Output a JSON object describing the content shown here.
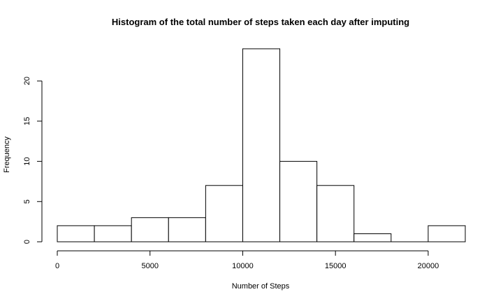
{
  "chart_data": {
    "type": "bar",
    "title": "Histogram of the total number of steps taken each day after imputing",
    "xlabel": "Number of Steps",
    "ylabel": "Frequency",
    "bins": [
      {
        "from": 0,
        "to": 2000,
        "count": 2
      },
      {
        "from": 2000,
        "to": 4000,
        "count": 2
      },
      {
        "from": 4000,
        "to": 6000,
        "count": 3
      },
      {
        "from": 6000,
        "to": 8000,
        "count": 3
      },
      {
        "from": 8000,
        "to": 10000,
        "count": 7
      },
      {
        "from": 10000,
        "to": 12000,
        "count": 24
      },
      {
        "from": 12000,
        "to": 14000,
        "count": 10
      },
      {
        "from": 14000,
        "to": 16000,
        "count": 7
      },
      {
        "from": 16000,
        "to": 18000,
        "count": 1
      },
      {
        "from": 18000,
        "to": 20000,
        "count": 0
      },
      {
        "from": 20000,
        "to": 22000,
        "count": 2
      }
    ],
    "xticks": [
      0,
      5000,
      10000,
      15000,
      20000
    ],
    "yticks": [
      0,
      5,
      10,
      15,
      20
    ],
    "xlim": [
      0,
      22000
    ],
    "ylim": [
      0,
      24
    ],
    "grid": false
  }
}
